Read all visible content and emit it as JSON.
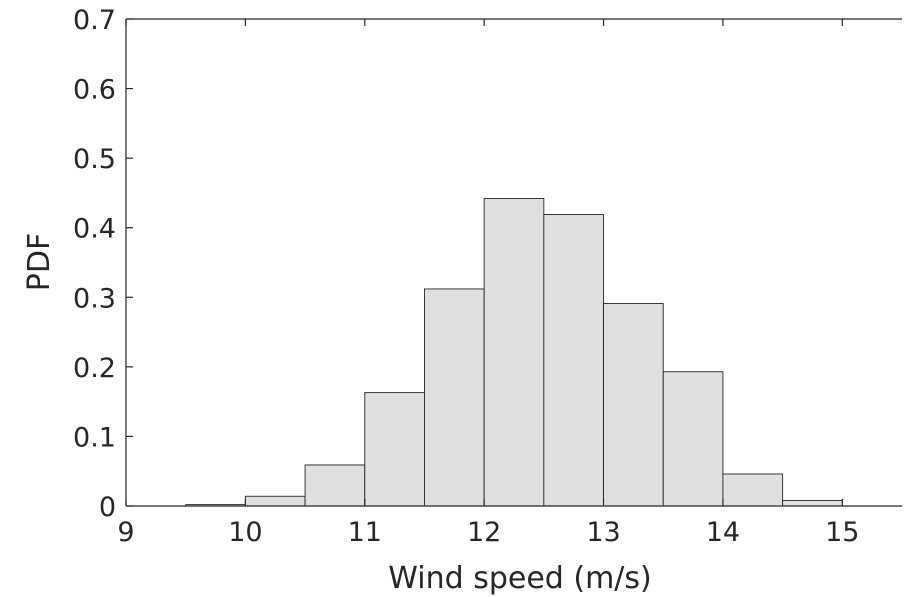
{
  "chart_data": {
    "type": "bar",
    "title": "",
    "xlabel": "Wind speed (m/s)",
    "ylabel": "PDF",
    "xlim": [
      9,
      15.5
    ],
    "ylim": [
      0,
      0.7
    ],
    "xticks": [
      "9",
      "10",
      "11",
      "12",
      "13",
      "14",
      "15"
    ],
    "yticks": [
      "0",
      "0.1",
      "0.2",
      "0.3",
      "0.4",
      "0.5",
      "0.6",
      "0.7"
    ],
    "bin_width": 0.5,
    "bins": [
      {
        "x0": 9.5,
        "x1": 10.0,
        "value": 0.002
      },
      {
        "x0": 10.0,
        "x1": 10.5,
        "value": 0.014
      },
      {
        "x0": 10.5,
        "x1": 11.0,
        "value": 0.059
      },
      {
        "x0": 11.0,
        "x1": 11.5,
        "value": 0.163
      },
      {
        "x0": 11.5,
        "x1": 12.0,
        "value": 0.312
      },
      {
        "x0": 12.0,
        "x1": 12.5,
        "value": 0.442
      },
      {
        "x0": 12.5,
        "x1": 13.0,
        "value": 0.419
      },
      {
        "x0": 13.0,
        "x1": 13.5,
        "value": 0.291
      },
      {
        "x0": 13.5,
        "x1": 14.0,
        "value": 0.193
      },
      {
        "x0": 14.0,
        "x1": 14.5,
        "value": 0.046
      },
      {
        "x0": 14.5,
        "x1": 15.0,
        "value": 0.008
      }
    ],
    "grid": false,
    "box": true,
    "bar_color": "#e0e0e0",
    "edge_color": "#262626"
  }
}
